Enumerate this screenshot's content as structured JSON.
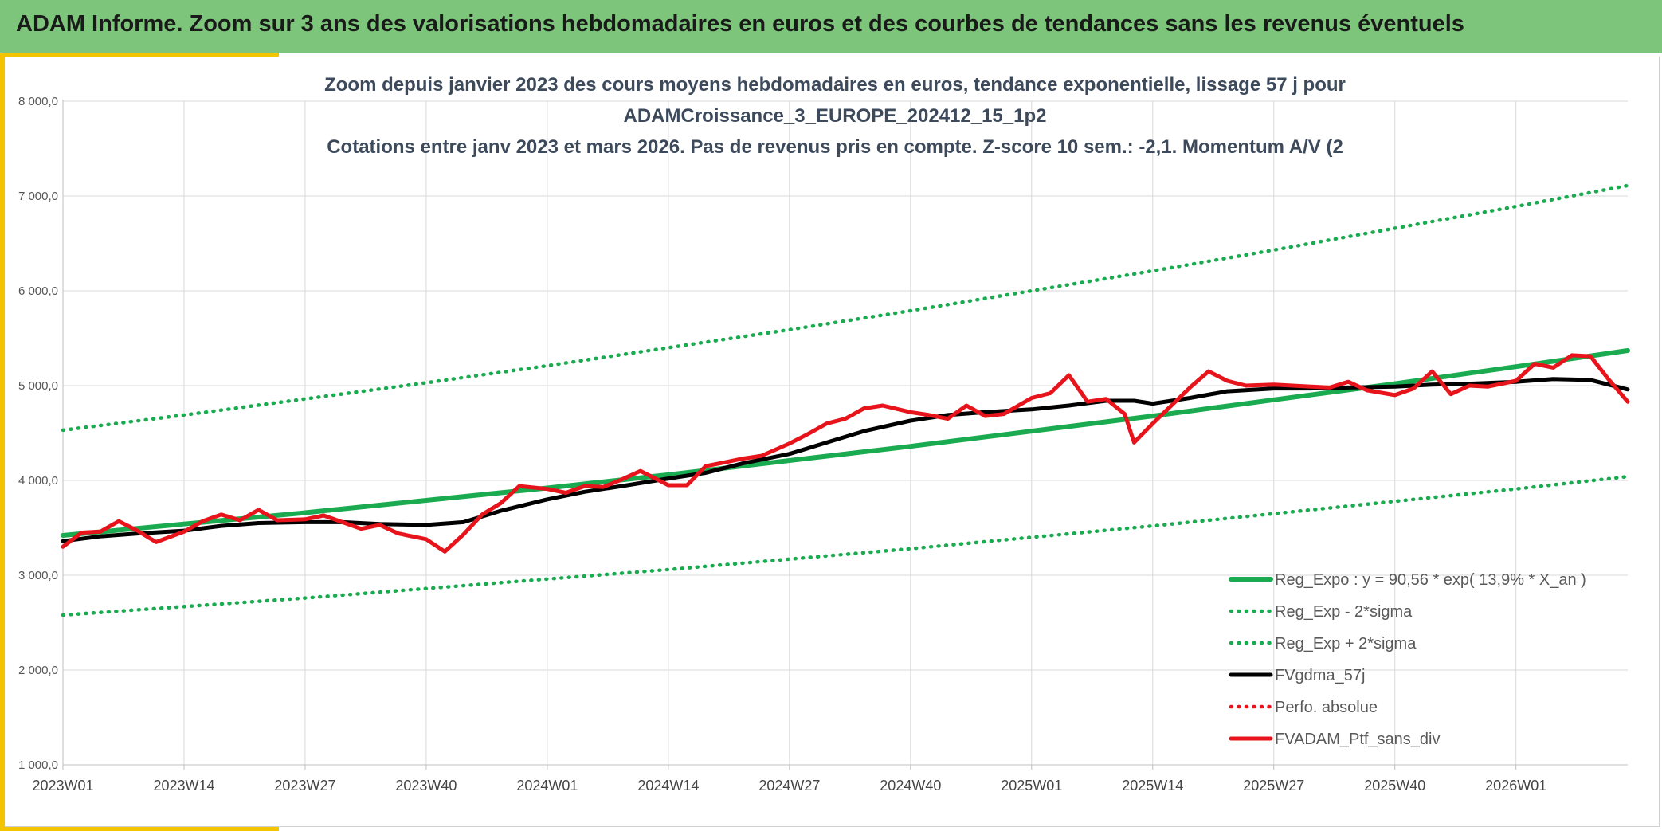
{
  "header": {
    "title": "ADAM Informe. Zoom sur 3 ans des valorisations hebdomadaires en euros et des courbes de tendances sans les revenus éventuels"
  },
  "colors": {
    "header_bg": "#7dc57a",
    "accent": "#f2c500",
    "reg_green": "#1aaa4f",
    "ma_black": "#000000",
    "ptf_red": "#e8141c"
  },
  "chart_data": {
    "type": "line",
    "title_lines": [
      "Zoom depuis janvier 2023 des cours moyens hebdomadaires en euros, tendance exponentielle, lissage 57 j pour",
      "ADAMCroissance_3_EUROPE_202412_15_1p2",
      "Cotations entre janv 2023 et mars 2026. Pas de revenus pris en compte. Z-score 10 sem.: -2,1. Momentum A/V (2"
    ],
    "ylim": [
      1000,
      8000
    ],
    "yticks": [
      1000,
      2000,
      3000,
      4000,
      5000,
      6000,
      7000,
      8000
    ],
    "ytick_labels": [
      "1 000,0",
      "2 000,0",
      "3 000,0",
      "4 000,0",
      "5 000,0",
      "6 000,0",
      "7 000,0",
      "8 000,0"
    ],
    "x_range": [
      0,
      168
    ],
    "xticks": [
      0,
      13,
      26,
      39,
      52,
      65,
      78,
      91,
      104,
      117,
      130,
      143,
      156
    ],
    "xtick_labels": [
      "2023W01",
      "2023W14",
      "2023W27",
      "2023W40",
      "2024W01",
      "2024W14",
      "2024W27",
      "2024W40",
      "2025W01",
      "2025W14",
      "2025W27",
      "2025W40",
      "2026W01"
    ],
    "grid": true,
    "legend_position": "bottom-right",
    "legend": [
      {
        "label": "Reg_Expo : y = 90,56 * exp( 13,9% *  X_an )",
        "color": "#1aaa4f",
        "style": "solid"
      },
      {
        "label": "Reg_Exp - 2*sigma",
        "color": "#1aaa4f",
        "style": "dotted"
      },
      {
        "label": "Reg_Exp + 2*sigma",
        "color": "#1aaa4f",
        "style": "dotted"
      },
      {
        "label": "FVgdma_57j",
        "color": "#000000",
        "style": "solid"
      },
      {
        "label": "Perfo. absolue",
        "color": "#e8141c",
        "style": "dotted"
      },
      {
        "label": "FVADAM_Ptf_sans_div",
        "color": "#e8141c",
        "style": "solid"
      }
    ],
    "series": [
      {
        "name": "Reg_Expo : y = 90,56 * exp( 13,9% *  X_an )",
        "x": [
          0,
          13,
          26,
          39,
          52,
          65,
          78,
          91,
          104,
          117,
          130,
          143,
          156,
          168
        ],
        "values": [
          3420,
          3540,
          3660,
          3790,
          3920,
          4060,
          4210,
          4360,
          4520,
          4680,
          4850,
          5020,
          5200,
          5370
        ]
      },
      {
        "name": "Reg_Exp - 2*sigma",
        "x": [
          0,
          13,
          26,
          39,
          52,
          65,
          78,
          91,
          104,
          117,
          130,
          143,
          156,
          168
        ],
        "values": [
          2580,
          2670,
          2760,
          2860,
          2960,
          3060,
          3170,
          3280,
          3400,
          3520,
          3650,
          3780,
          3910,
          4040
        ]
      },
      {
        "name": "Reg_Exp + 2*sigma",
        "x": [
          0,
          13,
          26,
          39,
          52,
          65,
          78,
          91,
          104,
          117,
          130,
          143,
          156,
          168
        ],
        "values": [
          4530,
          4690,
          4860,
          5030,
          5210,
          5400,
          5590,
          5790,
          6000,
          6210,
          6430,
          6660,
          6890,
          7110
        ]
      },
      {
        "name": "FVgdma_57j",
        "x": [
          0,
          4,
          8,
          13,
          17,
          21,
          26,
          30,
          34,
          39,
          43,
          47,
          52,
          56,
          60,
          65,
          69,
          73,
          78,
          82,
          86,
          91,
          95,
          99,
          104,
          108,
          112,
          115,
          117,
          121,
          125,
          130,
          134,
          138,
          143,
          147,
          151,
          156,
          160,
          164,
          168
        ],
        "values": [
          3360,
          3410,
          3440,
          3470,
          3520,
          3550,
          3560,
          3560,
          3540,
          3530,
          3560,
          3680,
          3800,
          3880,
          3940,
          4020,
          4080,
          4180,
          4280,
          4400,
          4520,
          4630,
          4690,
          4720,
          4750,
          4790,
          4840,
          4840,
          4810,
          4870,
          4940,
          4970,
          4970,
          4980,
          4990,
          5010,
          5020,
          5040,
          5070,
          5060,
          4960
        ]
      },
      {
        "name": "FVADAM_Ptf_sans_div",
        "x": [
          0,
          2,
          4,
          6,
          8,
          10,
          13,
          15,
          17,
          19,
          21,
          23,
          26,
          28,
          30,
          32,
          34,
          36,
          39,
          41,
          43,
          45,
          47,
          49,
          52,
          54,
          56,
          58,
          60,
          62,
          65,
          67,
          69,
          71,
          73,
          75,
          78,
          80,
          82,
          84,
          86,
          88,
          91,
          93,
          95,
          97,
          99,
          101,
          104,
          106,
          108,
          110,
          112,
          114,
          115,
          117,
          119,
          121,
          123,
          125,
          127,
          130,
          132,
          134,
          136,
          138,
          140,
          143,
          145,
          147,
          149,
          151,
          153,
          156,
          158,
          160,
          162,
          164,
          166,
          168
        ],
        "values": [
          3300,
          3450,
          3460,
          3570,
          3470,
          3350,
          3460,
          3570,
          3640,
          3580,
          3690,
          3580,
          3590,
          3630,
          3560,
          3490,
          3530,
          3440,
          3380,
          3250,
          3430,
          3640,
          3760,
          3940,
          3910,
          3870,
          3940,
          3930,
          4010,
          4100,
          3950,
          3950,
          4150,
          4190,
          4230,
          4260,
          4390,
          4490,
          4600,
          4650,
          4760,
          4790,
          4720,
          4690,
          4650,
          4790,
          4680,
          4700,
          4870,
          4920,
          5110,
          4830,
          4860,
          4700,
          4400,
          4600,
          4790,
          4980,
          5150,
          5050,
          5000,
          5010,
          5000,
          4990,
          4980,
          5040,
          4950,
          4900,
          4970,
          5150,
          4910,
          5000,
          4990,
          5050,
          5230,
          5190,
          5320,
          5310,
          5060,
          4830
        ]
      }
    ]
  }
}
